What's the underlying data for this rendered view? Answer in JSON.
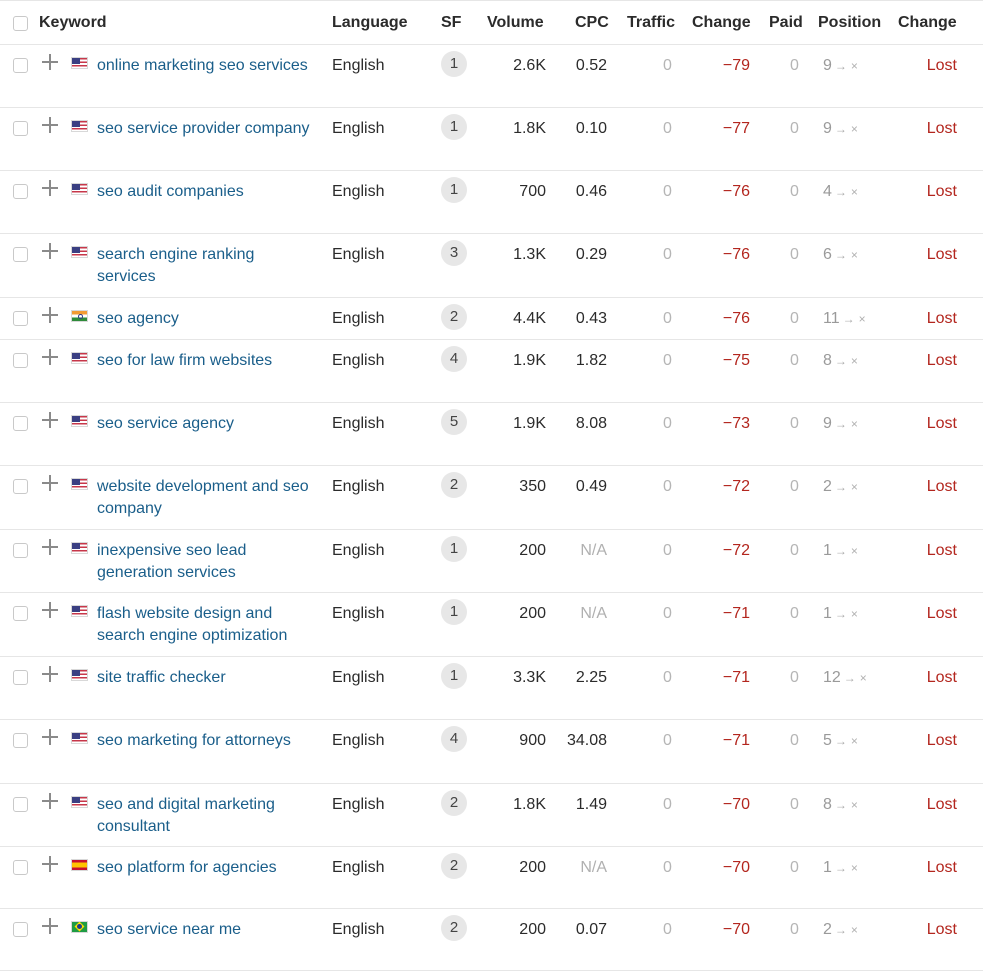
{
  "header": {
    "keyword": "Keyword",
    "language": "Language",
    "sf": "SF",
    "volume": "Volume",
    "cpc": "CPC",
    "traffic": "Traffic",
    "traffic_change": "Change",
    "paid": "Paid",
    "position": "Position",
    "position_change": "Change"
  },
  "position_arrow": "→",
  "position_lost_mark": "×",
  "rows": [
    {
      "keyword": "online marketing seo services",
      "flag": "us",
      "language": "English",
      "sf": "1",
      "volume": "2.6K",
      "cpc": "0.52",
      "traffic": "0",
      "change": "−79",
      "paid": "0",
      "position": "9",
      "status": "Lost"
    },
    {
      "keyword": "seo service provider company",
      "flag": "us",
      "language": "English",
      "sf": "1",
      "volume": "1.8K",
      "cpc": "0.10",
      "traffic": "0",
      "change": "−77",
      "paid": "0",
      "position": "9",
      "status": "Lost"
    },
    {
      "keyword": "seo audit companies",
      "flag": "us",
      "language": "English",
      "sf": "1",
      "volume": "700",
      "cpc": "0.46",
      "traffic": "0",
      "change": "−76",
      "paid": "0",
      "position": "4",
      "status": "Lost"
    },
    {
      "keyword": "search engine ranking services",
      "flag": "us",
      "language": "English",
      "sf": "3",
      "volume": "1.3K",
      "cpc": "0.29",
      "traffic": "0",
      "change": "−76",
      "paid": "0",
      "position": "6",
      "status": "Lost"
    },
    {
      "keyword": "seo agency",
      "flag": "in",
      "language": "English",
      "sf": "2",
      "volume": "4.4K",
      "cpc": "0.43",
      "traffic": "0",
      "change": "−76",
      "paid": "0",
      "position": "11",
      "status": "Lost"
    },
    {
      "keyword": "seo for law firm websites",
      "flag": "us",
      "language": "English",
      "sf": "4",
      "volume": "1.9K",
      "cpc": "1.82",
      "traffic": "0",
      "change": "−75",
      "paid": "0",
      "position": "8",
      "status": "Lost"
    },
    {
      "keyword": "seo service agency",
      "flag": "us",
      "language": "English",
      "sf": "5",
      "volume": "1.9K",
      "cpc": "8.08",
      "traffic": "0",
      "change": "−73",
      "paid": "0",
      "position": "9",
      "status": "Lost"
    },
    {
      "keyword": "website development and seo company",
      "flag": "us",
      "language": "English",
      "sf": "2",
      "volume": "350",
      "cpc": "0.49",
      "traffic": "0",
      "change": "−72",
      "paid": "0",
      "position": "2",
      "status": "Lost"
    },
    {
      "keyword": "inexpensive seo lead generation services",
      "flag": "us",
      "language": "English",
      "sf": "1",
      "volume": "200",
      "cpc": "N/A",
      "traffic": "0",
      "change": "−72",
      "paid": "0",
      "position": "1",
      "status": "Lost"
    },
    {
      "keyword": "flash website design and search engine optimization",
      "flag": "us",
      "language": "English",
      "sf": "1",
      "volume": "200",
      "cpc": "N/A",
      "traffic": "0",
      "change": "−71",
      "paid": "0",
      "position": "1",
      "status": "Lost"
    },
    {
      "keyword": "site traffic checker",
      "flag": "us",
      "language": "English",
      "sf": "1",
      "volume": "3.3K",
      "cpc": "2.25",
      "traffic": "0",
      "change": "−71",
      "paid": "0",
      "position": "12",
      "status": "Lost"
    },
    {
      "keyword": "seo marketing for attorneys",
      "flag": "us",
      "language": "English",
      "sf": "4",
      "volume": "900",
      "cpc": "34.08",
      "traffic": "0",
      "change": "−71",
      "paid": "0",
      "position": "5",
      "status": "Lost"
    },
    {
      "keyword": "seo and digital marketing consultant",
      "flag": "us",
      "language": "English",
      "sf": "2",
      "volume": "1.8K",
      "cpc": "1.49",
      "traffic": "0",
      "change": "−70",
      "paid": "0",
      "position": "8",
      "status": "Lost"
    },
    {
      "keyword": "seo platform for agencies",
      "flag": "es",
      "language": "English",
      "sf": "2",
      "volume": "200",
      "cpc": "N/A",
      "traffic": "0",
      "change": "−70",
      "paid": "0",
      "position": "1",
      "status": "Lost"
    },
    {
      "keyword": "seo service near me",
      "flag": "br",
      "language": "English",
      "sf": "2",
      "volume": "200",
      "cpc": "0.07",
      "traffic": "0",
      "change": "−70",
      "paid": "0",
      "position": "2",
      "status": "Lost"
    }
  ]
}
